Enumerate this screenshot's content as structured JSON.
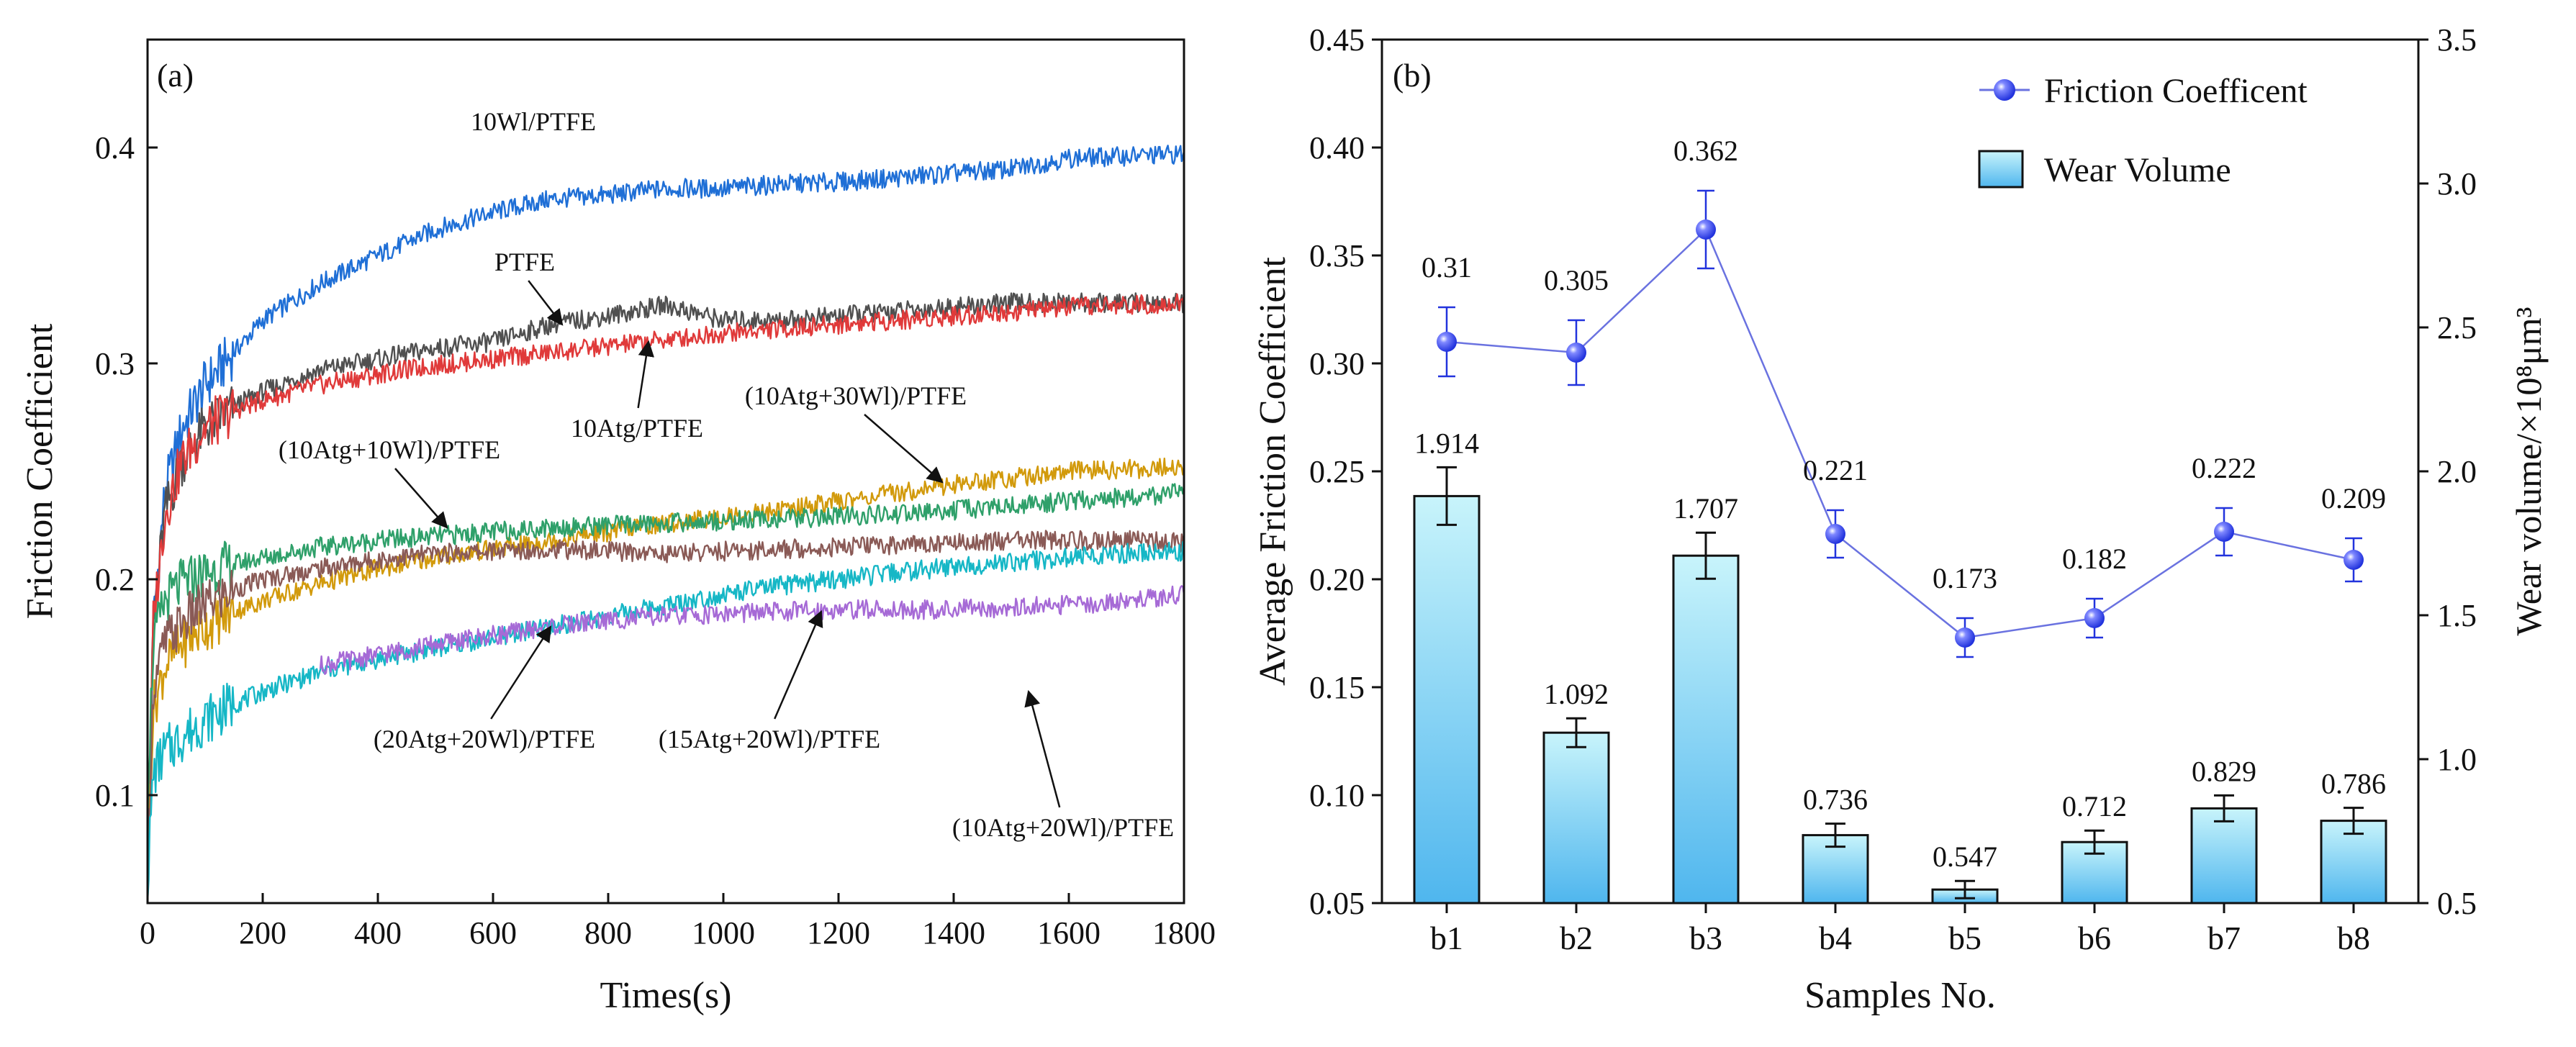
{
  "colors": {
    "blue": "#1f6fd6",
    "red": "#e03a3a",
    "dark": "#505050",
    "gold": "#d29a0c",
    "green": "#2fa06a",
    "brown": "#8a5a56",
    "cyan": "#16b7c6",
    "purple": "#a66ad6",
    "bar_fill_top": "#c8f4fb",
    "bar_fill_bottom": "#4fb6ee",
    "marker": "#2233dd",
    "line_b": "#6a72e0"
  },
  "chart_data": [
    {
      "type": "line",
      "panel_label": "(a)",
      "xlabel": "Times(s)",
      "ylabel": "Friction Coefficient",
      "xlim": [
        0,
        1800
      ],
      "ylim": [
        0.05,
        0.45
      ],
      "xticks": [
        "0",
        "200",
        "400",
        "600",
        "800",
        "1000",
        "1200",
        "1400",
        "1600",
        "1800"
      ],
      "yticks": [
        "0.1",
        "0.2",
        "0.3",
        "0.4"
      ],
      "series": [
        {
          "name": "10Wl/PTFE",
          "color_key": "blue",
          "x": [
            0,
            10,
            30,
            60,
            100,
            150,
            200,
            300,
            400,
            500,
            600,
            700,
            800,
            900,
            1000,
            1100,
            1200,
            1300,
            1400,
            1500,
            1600,
            1700,
            1800
          ],
          "y": [
            0.06,
            0.18,
            0.24,
            0.27,
            0.29,
            0.305,
            0.32,
            0.337,
            0.35,
            0.362,
            0.37,
            0.376,
            0.378,
            0.381,
            0.381,
            0.383,
            0.384,
            0.386,
            0.388,
            0.39,
            0.395,
            0.396,
            0.397
          ]
        },
        {
          "name": "PTFE",
          "color_key": "dark",
          "x": [
            0,
            10,
            30,
            60,
            100,
            150,
            200,
            300,
            400,
            500,
            600,
            700,
            800,
            900,
            1000,
            1100,
            1200,
            1300,
            1400,
            1500,
            1600,
            1700,
            1800
          ],
          "y": [
            0.06,
            0.18,
            0.23,
            0.255,
            0.27,
            0.28,
            0.287,
            0.297,
            0.302,
            0.307,
            0.31,
            0.318,
            0.322,
            0.327,
            0.32,
            0.32,
            0.322,
            0.324,
            0.326,
            0.328,
            0.328,
            0.328,
            0.328
          ]
        },
        {
          "name": "10Atg/PTFE",
          "color_key": "red",
          "x": [
            0,
            10,
            30,
            60,
            100,
            150,
            200,
            300,
            400,
            500,
            600,
            700,
            800,
            900,
            1000,
            1100,
            1200,
            1300,
            1400,
            1500,
            1600,
            1700,
            1800
          ],
          "y": [
            0.06,
            0.18,
            0.23,
            0.255,
            0.27,
            0.278,
            0.283,
            0.29,
            0.295,
            0.299,
            0.302,
            0.305,
            0.308,
            0.311,
            0.314,
            0.316,
            0.318,
            0.32,
            0.322,
            0.324,
            0.326,
            0.327,
            0.328
          ]
        },
        {
          "name": "(10Atg+30Wl)/PTFE",
          "color_key": "gold",
          "x": [
            0,
            10,
            30,
            60,
            100,
            150,
            200,
            300,
            400,
            500,
            600,
            700,
            800,
            900,
            1000,
            1100,
            1200,
            1300,
            1400,
            1500,
            1600,
            1700,
            1800
          ],
          "y": [
            0.08,
            0.14,
            0.16,
            0.17,
            0.178,
            0.185,
            0.19,
            0.198,
            0.205,
            0.21,
            0.214,
            0.218,
            0.222,
            0.226,
            0.229,
            0.232,
            0.236,
            0.24,
            0.244,
            0.247,
            0.25,
            0.251,
            0.252
          ]
        },
        {
          "name": "(10Atg+10Wl)/PTFE",
          "color_key": "green",
          "x": [
            0,
            10,
            30,
            60,
            100,
            150,
            200,
            300,
            400,
            500,
            600,
            700,
            800,
            900,
            1000,
            1100,
            1200,
            1300,
            1400,
            1500,
            1600,
            1700,
            1800
          ],
          "y": [
            0.1,
            0.17,
            0.19,
            0.198,
            0.203,
            0.207,
            0.21,
            0.215,
            0.218,
            0.22,
            0.222,
            0.224,
            0.225,
            0.226,
            0.227,
            0.228,
            0.229,
            0.23,
            0.232,
            0.234,
            0.236,
            0.238,
            0.24
          ]
        },
        {
          "name": "(20Atg+20Wl)/PTFE",
          "color_key": "brown",
          "x": [
            0,
            10,
            30,
            60,
            100,
            150,
            200,
            300,
            400,
            500,
            600,
            700,
            800,
            900,
            1000,
            1100,
            1200,
            1300,
            1400,
            1500,
            1600,
            1700,
            1800
          ],
          "y": [
            0.07,
            0.15,
            0.17,
            0.18,
            0.188,
            0.195,
            0.2,
            0.205,
            0.209,
            0.212,
            0.213,
            0.214,
            0.213,
            0.212,
            0.213,
            0.214,
            0.215,
            0.216,
            0.217,
            0.218,
            0.218,
            0.218,
            0.217
          ]
        },
        {
          "name": "(15Atg+20Wl)/PTFE",
          "color_key": "cyan",
          "x": [
            0,
            10,
            30,
            60,
            100,
            150,
            200,
            300,
            400,
            500,
            600,
            700,
            800,
            900,
            1000,
            1100,
            1200,
            1300,
            1400,
            1500,
            1600,
            1700,
            1800
          ],
          "y": [
            0.06,
            0.11,
            0.12,
            0.127,
            0.135,
            0.142,
            0.148,
            0.157,
            0.163,
            0.168,
            0.173,
            0.178,
            0.183,
            0.188,
            0.193,
            0.197,
            0.2,
            0.203,
            0.206,
            0.208,
            0.21,
            0.212,
            0.213
          ]
        },
        {
          "name": "(10Atg+20Wl)/PTFE",
          "color_key": "purple",
          "x": [
            300,
            400,
            500,
            600,
            700,
            800,
            900,
            1000,
            1100,
            1200,
            1300,
            1400,
            1500,
            1600,
            1700,
            1800
          ],
          "y": [
            0.16,
            0.165,
            0.17,
            0.174,
            0.178,
            0.181,
            0.183,
            0.184,
            0.185,
            0.186,
            0.186,
            0.186,
            0.187,
            0.188,
            0.19,
            0.193
          ]
        }
      ],
      "annotations": [
        {
          "text": "10Wl/PTFE",
          "x": 670,
          "y": 0.408
        },
        {
          "text": "PTFE",
          "x": 655,
          "y": 0.343,
          "arrow_to": [
            720,
            0.318
          ]
        },
        {
          "text": "10Atg/PTFE",
          "x": 850,
          "y": 0.266,
          "arrow_to": [
            870,
            0.31
          ]
        },
        {
          "text": "(10Atg+30Wl)/PTFE",
          "x": 1230,
          "y": 0.281,
          "arrow_to": [
            1380,
            0.245
          ]
        },
        {
          "text": "(10Atg+10Wl)/PTFE",
          "x": 420,
          "y": 0.256,
          "arrow_to": [
            520,
            0.224
          ]
        },
        {
          "text": "(20Atg+20Wl)/PTFE",
          "x": 585,
          "y": 0.122,
          "arrow_to": [
            700,
            0.178
          ]
        },
        {
          "text": "(15Atg+20Wl)/PTFE",
          "x": 1080,
          "y": 0.122,
          "arrow_to": [
            1170,
            0.185
          ]
        },
        {
          "text": "(10Atg+20Wl)/PTFE",
          "x": 1590,
          "y": 0.081,
          "arrow_to": [
            1530,
            0.148
          ]
        }
      ]
    },
    {
      "type": "bar+line",
      "panel_label": "(b)",
      "xlabel": "Samples No.",
      "ylabel_left": "Average Friction Coefficient",
      "ylabel_right": "Wear volume/×10⁸μm³",
      "categories": [
        "b1",
        "b2",
        "b3",
        "b4",
        "b5",
        "b6",
        "b7",
        "b8"
      ],
      "ylim_left": [
        0.05,
        0.45
      ],
      "ylim_right": [
        0.5,
        3.5
      ],
      "yticks_left": [
        "0.05",
        "0.10",
        "0.15",
        "0.20",
        "0.25",
        "0.30",
        "0.35",
        "0.40",
        "0.45"
      ],
      "yticks_right": [
        "0.5",
        "1.0",
        "1.5",
        "2.0",
        "2.5",
        "3.0",
        "3.5"
      ],
      "legend": {
        "placement": "top-right",
        "line_label": "Friction Coefficent",
        "bar_label": "Wear Volume"
      },
      "friction": {
        "values": [
          0.31,
          0.305,
          0.362,
          0.221,
          0.173,
          0.182,
          0.222,
          0.209
        ],
        "labels": [
          "0.31",
          "0.305",
          "0.362",
          "0.221",
          "0.173",
          "0.182",
          "0.222",
          "0.209"
        ],
        "errors": [
          0.016,
          0.015,
          0.018,
          0.011,
          0.009,
          0.009,
          0.011,
          0.01
        ]
      },
      "wear": {
        "values": [
          1.914,
          1.092,
          1.707,
          0.736,
          0.547,
          0.712,
          0.829,
          0.786
        ],
        "labels": [
          "1.914",
          "1.092",
          "1.707",
          "0.736",
          "0.547",
          "0.712",
          "0.829",
          "0.786"
        ],
        "errors": [
          0.1,
          0.05,
          0.08,
          0.04,
          0.03,
          0.04,
          0.045,
          0.045
        ]
      }
    }
  ]
}
